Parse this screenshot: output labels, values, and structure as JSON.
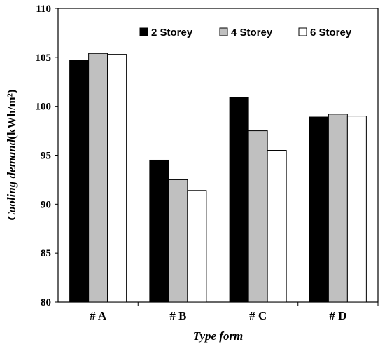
{
  "chart_data": {
    "type": "bar",
    "categories": [
      "# A",
      "# B",
      "# C",
      "# D"
    ],
    "series": [
      {
        "name": "2 Storey",
        "color": "#000000",
        "values": [
          104.7,
          94.5,
          100.9,
          98.9
        ]
      },
      {
        "name": "4 Storey",
        "color": "#c0c0c0",
        "values": [
          105.4,
          92.5,
          97.5,
          99.2
        ]
      },
      {
        "name": "6 Storey",
        "color": "#ffffff",
        "values": [
          105.3,
          91.4,
          95.5,
          99.0
        ]
      }
    ],
    "title": "",
    "xlabel": "Type form",
    "ylabel": "Cooling demand",
    "ylabel_unit": "(kWh/m²)",
    "ylim": [
      80,
      110
    ],
    "yticks": [
      80,
      85,
      90,
      95,
      100,
      105,
      110
    ],
    "legend_position": "top-right",
    "grid": false
  }
}
